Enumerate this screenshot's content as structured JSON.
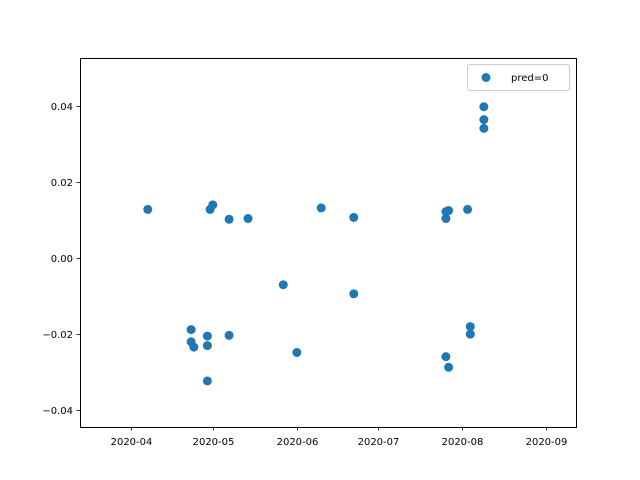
{
  "chart_data": {
    "type": "scatter",
    "title": "",
    "xlabel": "",
    "ylabel": "",
    "x_axis": "date",
    "xlim": [
      "2020-03-13",
      "2020-09-12"
    ],
    "ylim": [
      -0.0445,
      0.0525
    ],
    "x_ticks": [
      "2020-04-01",
      "2020-05-01",
      "2020-06-01",
      "2020-07-01",
      "2020-08-01",
      "2020-09-01"
    ],
    "x_tick_labels": [
      "2020-04",
      "2020-05",
      "2020-06",
      "2020-07",
      "2020-08",
      "2020-09"
    ],
    "y_ticks": [
      -0.04,
      -0.02,
      0.0,
      0.02,
      0.04
    ],
    "y_tick_labels": [
      "−0.04",
      "−0.02",
      "0.00",
      "0.02",
      "0.04"
    ],
    "grid": false,
    "legend": {
      "position": "top-right"
    },
    "series": [
      {
        "name": "pred=0",
        "color": "#1f77b4",
        "points": [
          {
            "x": "2020-04-07",
            "y": 0.0127
          },
          {
            "x": "2020-04-23",
            "y": -0.0189
          },
          {
            "x": "2020-04-23",
            "y": -0.0221
          },
          {
            "x": "2020-04-24",
            "y": -0.0235
          },
          {
            "x": "2020-04-29",
            "y": -0.0206
          },
          {
            "x": "2020-04-29",
            "y": -0.0231
          },
          {
            "x": "2020-04-29",
            "y": -0.0324
          },
          {
            "x": "2020-04-30",
            "y": 0.0127
          },
          {
            "x": "2020-05-01",
            "y": 0.0139
          },
          {
            "x": "2020-05-07",
            "y": 0.0101
          },
          {
            "x": "2020-05-07",
            "y": -0.0204
          },
          {
            "x": "2020-05-14",
            "y": 0.0103
          },
          {
            "x": "2020-05-27",
            "y": -0.0071
          },
          {
            "x": "2020-06-01",
            "y": -0.0249
          },
          {
            "x": "2020-06-10",
            "y": 0.0131
          },
          {
            "x": "2020-06-22",
            "y": 0.0106
          },
          {
            "x": "2020-06-22",
            "y": -0.0095
          },
          {
            "x": "2020-07-26",
            "y": 0.0121
          },
          {
            "x": "2020-07-26",
            "y": 0.0103
          },
          {
            "x": "2020-07-27",
            "y": 0.0124
          },
          {
            "x": "2020-07-26",
            "y": -0.026
          },
          {
            "x": "2020-07-27",
            "y": -0.0288
          },
          {
            "x": "2020-08-03",
            "y": 0.0127
          },
          {
            "x": "2020-08-04",
            "y": -0.0181
          },
          {
            "x": "2020-08-04",
            "y": -0.0201
          },
          {
            "x": "2020-08-09",
            "y": 0.0397
          },
          {
            "x": "2020-08-09",
            "y": 0.0363
          },
          {
            "x": "2020-08-09",
            "y": 0.034
          }
        ]
      }
    ]
  }
}
